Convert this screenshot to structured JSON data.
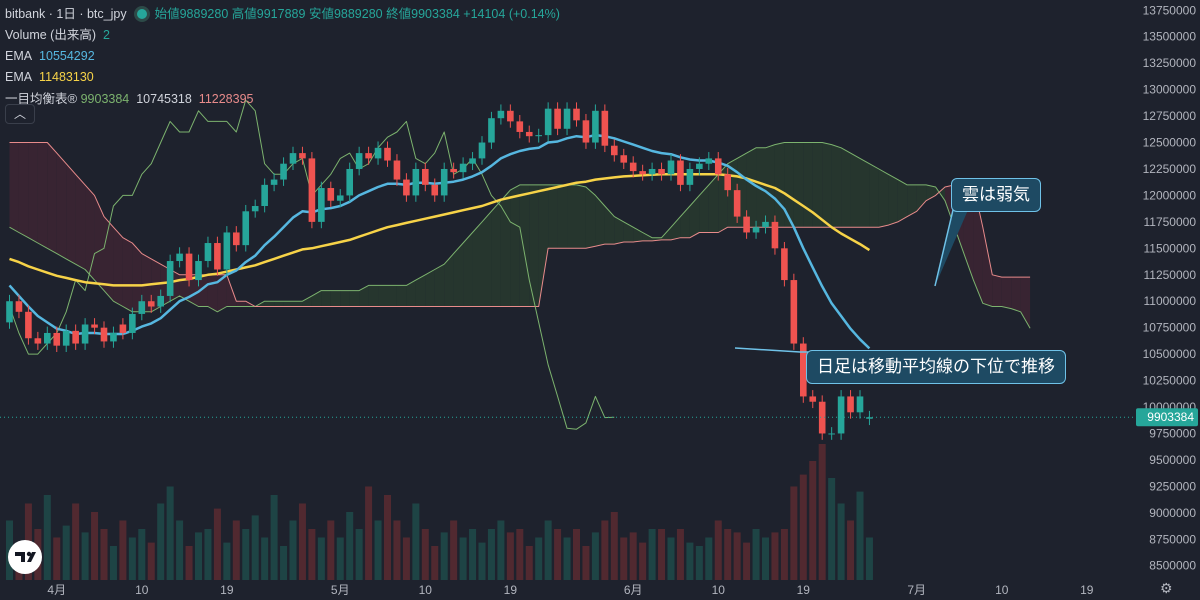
{
  "header": {
    "symbol": "bitbank · 1日 · btc_jpy",
    "open_label": "始値",
    "open": "9889280",
    "high_label": "高値",
    "high": "9917889",
    "low_label": "安値",
    "low": "9889280",
    "close_label": "終値",
    "close": "9903384",
    "change": "+14104 (+0.14%)"
  },
  "indicators": {
    "volume_label": "Volume (出来高)",
    "volume_value": "2",
    "ema1_label": "EMA",
    "ema1_value": "10554292",
    "ema2_label": "EMA",
    "ema2_value": "11483130",
    "ichimoku_label": "一目均衡表",
    "ichimoku_symbol": "®",
    "ichimoku_v1": "9903384",
    "ichimoku_v2": "10745318",
    "ichimoku_v3": "11228395"
  },
  "collapse_icon": "chevron-up-icon",
  "annotations": {
    "cloud": "雲は弱気",
    "ma": "日足は移動平均線の下位で推移"
  },
  "colors": {
    "bull": "#26a69a",
    "bear": "#ef5350",
    "ema_fast": "#56b7e0",
    "ema_slow": "#f7d348",
    "senkou_a": "#7cb36e",
    "senkou_b": "#e88b8b",
    "background": "#1e222d"
  },
  "chart_data": {
    "type": "candlestick",
    "y_ticks": [
      8500000,
      8750000,
      9000000,
      9250000,
      9500000,
      9750000,
      10000000,
      10250000,
      10500000,
      10750000,
      11000000,
      11250000,
      11500000,
      11750000,
      12000000,
      12250000,
      12500000,
      12750000,
      13000000,
      13250000,
      13500000,
      13750000
    ],
    "y_tick_labels": [
      "8500000",
      "8750000",
      "9000000",
      "9250000",
      "9500000",
      "9750000",
      "10000000",
      "10250000",
      "10500000",
      "10750000",
      "11000000",
      "11250000",
      "11500000",
      "11750000",
      "12000000",
      "12250000",
      "12500000",
      "12750000",
      "13000000",
      "13250000",
      "13500000",
      "13750000"
    ],
    "ylim": [
      8450000,
      13800000
    ],
    "last_price": 9903384,
    "last_price_label": "9903384",
    "x_ticks": [
      {
        "label": "4月",
        "day": 0
      },
      {
        "label": "10",
        "day": 9
      },
      {
        "label": "19",
        "day": 18
      },
      {
        "label": "5月",
        "day": 30
      },
      {
        "label": "10",
        "day": 39
      },
      {
        "label": "19",
        "day": 48
      },
      {
        "label": "6月",
        "day": 61
      },
      {
        "label": "10",
        "day": 70
      },
      {
        "label": "19",
        "day": 79
      },
      {
        "label": "7月",
        "day": 91
      },
      {
        "label": "10",
        "day": 100
      },
      {
        "label": "19",
        "day": 109
      }
    ],
    "first_day_offset": -5,
    "close": [
      11000000,
      10900000,
      10650000,
      10600000,
      10700000,
      10580000,
      10720000,
      10600000,
      10780000,
      10750000,
      10620000,
      10700000,
      10700000,
      10880000,
      11000000,
      10950000,
      11050000,
      11380000,
      11450000,
      11200000,
      11380000,
      11550000,
      11300000,
      11650000,
      11530000,
      11850000,
      11900000,
      12100000,
      12150000,
      12300000,
      12400000,
      12350000,
      11750000,
      12070000,
      11950000,
      12000000,
      12250000,
      12400000,
      12350000,
      12450000,
      12330000,
      12150000,
      12000000,
      12250000,
      12100000,
      12000000,
      12250000,
      12220000,
      12300000,
      12350000,
      12500000,
      12730000,
      12800000,
      12700000,
      12600000,
      12560000,
      12570000,
      12820000,
      12630000,
      12820000,
      12710000,
      12500000,
      12800000,
      12470000,
      12380000,
      12310000,
      12230000,
      12200000,
      12250000,
      12200000,
      12330000,
      12100000,
      12250000,
      12300000,
      12350000,
      12200000,
      12050000,
      11800000,
      11650000,
      11700000,
      11750000,
      11500000,
      11200000,
      10600000,
      10100000,
      10050000,
      9750000,
      9750000,
      10100000,
      9950000,
      10100000,
      9903384
    ],
    "candle_open": [
      10800000,
      11000000,
      10900000,
      10650000,
      10600000,
      10700000,
      10580000,
      10720000,
      10600000,
      10780000,
      10750000,
      10620000,
      10780000,
      10700000,
      10880000,
      11000000,
      10950000,
      11050000,
      11380000,
      11450000,
      11200000,
      11380000,
      11550000,
      11300000,
      11650000,
      11530000,
      11850000,
      11900000,
      12100000,
      12150000,
      12300000,
      12400000,
      12350000,
      11750000,
      12070000,
      11950000,
      12000000,
      12250000,
      12400000,
      12350000,
      12450000,
      12330000,
      12150000,
      12000000,
      12250000,
      12100000,
      12000000,
      12250000,
      12220000,
      12300000,
      12350000,
      12500000,
      12730000,
      12800000,
      12700000,
      12600000,
      12560000,
      12570000,
      12820000,
      12630000,
      12820000,
      12710000,
      12500000,
      12800000,
      12470000,
      12380000,
      12310000,
      12230000,
      12200000,
      12250000,
      12200000,
      12330000,
      12100000,
      12250000,
      12300000,
      12350000,
      12200000,
      12050000,
      11800000,
      11650000,
      11700000,
      11750000,
      11500000,
      11200000,
      10600000,
      10100000,
      10050000,
      9750000,
      9750000,
      10100000,
      9950000,
      9889280
    ],
    "ema_fast": [
      11150000,
      11050000,
      10950000,
      10860000,
      10800000,
      10740000,
      10720000,
      10690000,
      10700000,
      10700000,
      10690000,
      10690000,
      10690000,
      10720000,
      10760000,
      10790000,
      10840000,
      10920000,
      11000000,
      11040000,
      11090000,
      11160000,
      11180000,
      11250000,
      11290000,
      11370000,
      11430000,
      11530000,
      11610000,
      11700000,
      11790000,
      11850000,
      11840000,
      11870000,
      11880000,
      11900000,
      11940000,
      12000000,
      12040000,
      12080000,
      12110000,
      12110000,
      12100000,
      12120000,
      12120000,
      12110000,
      12120000,
      12130000,
      12150000,
      12180000,
      12220000,
      12280000,
      12350000,
      12390000,
      12420000,
      12440000,
      12450000,
      12500000,
      12510000,
      12540000,
      12560000,
      12550000,
      12570000,
      12560000,
      12540000,
      12510000,
      12480000,
      12450000,
      12420000,
      12400000,
      12390000,
      12360000,
      12340000,
      12330000,
      12330000,
      12310000,
      12280000,
      12220000,
      12150000,
      12090000,
      12040000,
      11970000,
      11870000,
      11700000,
      11500000,
      11320000,
      11140000,
      10980000,
      10860000,
      10740000,
      10640000,
      10554292
    ],
    "ema_slow": [
      11400000,
      11370000,
      11330000,
      11300000,
      11270000,
      11240000,
      11220000,
      11200000,
      11180000,
      11170000,
      11160000,
      11150000,
      11150000,
      11150000,
      11150000,
      11160000,
      11170000,
      11180000,
      11200000,
      11210000,
      11230000,
      11250000,
      11260000,
      11280000,
      11300000,
      11320000,
      11340000,
      11370000,
      11400000,
      11430000,
      11460000,
      11490000,
      11500000,
      11520000,
      11540000,
      11560000,
      11580000,
      11610000,
      11640000,
      11670000,
      11700000,
      11720000,
      11740000,
      11760000,
      11780000,
      11800000,
      11820000,
      11840000,
      11860000,
      11880000,
      11900000,
      11930000,
      11960000,
      11980000,
      12000000,
      12020000,
      12040000,
      12060000,
      12080000,
      12100000,
      12120000,
      12130000,
      12150000,
      12160000,
      12170000,
      12180000,
      12185000,
      12190000,
      12195000,
      12200000,
      12200000,
      12200000,
      12200000,
      12200000,
      12200000,
      12200000,
      12190000,
      12180000,
      12160000,
      12130000,
      12100000,
      12070000,
      12020000,
      11960000,
      11900000,
      11840000,
      11770000,
      11700000,
      11640000,
      11590000,
      11540000,
      11483130
    ],
    "senkou_a": [
      11700000,
      11650000,
      11600000,
      11550000,
      11500000,
      11450000,
      11400000,
      11350000,
      11300000,
      11200000,
      11100000,
      11000000,
      10950000,
      10900000,
      10900000,
      10900000,
      10950000,
      11000000,
      11050000,
      11000000,
      10950000,
      10950000,
      10900000,
      10950000,
      10950000,
      10950000,
      10950000,
      11000000,
      11000000,
      11000000,
      11000000,
      11000000,
      11050000,
      11100000,
      11100000,
      11100000,
      11100000,
      11100000,
      11150000,
      11150000,
      11150000,
      11150000,
      11150000,
      11200000,
      11250000,
      11300000,
      11350000,
      11450000,
      11550000,
      11650000,
      11750000,
      11850000,
      11950000,
      12050000,
      12100000,
      12100000,
      12100000,
      12100000,
      12100000,
      12100000,
      12100000,
      12080000,
      12000000,
      11900000,
      11800000,
      11750000,
      11700000,
      11650000,
      11600000,
      11600000,
      11700000,
      11800000,
      11900000,
      12000000,
      12100000,
      12200000,
      12300000,
      12350000,
      12400000,
      12450000,
      12450000,
      12480000,
      12500000,
      12500000,
      12500000,
      12500000,
      12500000,
      12480000,
      12450000,
      12400000,
      12350000,
      12300000,
      12250000,
      12200000,
      12150000,
      12100000,
      12100000,
      12100000,
      12080000,
      11950000,
      11700000,
      11450000,
      11200000,
      10980000,
      10950000,
      10950000,
      10930000,
      10900000,
      10745318
    ],
    "senkou_b": [
      12500000,
      12500000,
      12500000,
      12500000,
      12500000,
      12400000,
      12300000,
      12200000,
      12100000,
      12000000,
      11800000,
      11700000,
      11600000,
      11550000,
      11450000,
      11400000,
      11350000,
      11300000,
      11250000,
      11250000,
      11250000,
      11250000,
      11250000,
      11250000,
      11000000,
      11000000,
      10950000,
      10950000,
      10950000,
      10950000,
      10950000,
      10950000,
      10950000,
      10950000,
      10950000,
      10950000,
      10950000,
      10950000,
      10950000,
      10950000,
      10950000,
      10950000,
      10950000,
      10950000,
      10950000,
      10950000,
      10950000,
      10950000,
      10950000,
      10950000,
      10950000,
      10950000,
      10950000,
      10950000,
      10950000,
      10950000,
      10950000,
      11500000,
      11500000,
      11500000,
      11500000,
      11500000,
      11520000,
      11540000,
      11540000,
      11560000,
      11560000,
      11570000,
      11570000,
      11580000,
      11580000,
      11600000,
      11600000,
      11650000,
      11650000,
      11650000,
      11700000,
      11700000,
      11700000,
      11700000,
      11700000,
      11700000,
      11700000,
      11700000,
      11700000,
      11700000,
      11700000,
      11700000,
      11700000,
      11700000,
      11700000,
      11700000,
      11700000,
      11720000,
      11750000,
      11800000,
      11850000,
      11950000,
      12000000,
      12080000,
      12100000,
      12100000,
      12100000,
      11700000,
      11250000,
      11228395,
      11228395,
      11228395,
      11228395
    ],
    "chikou": [
      10950000,
      10700000,
      10500000,
      10500000,
      10600000,
      10700000,
      10900000,
      11200000,
      11100000,
      11450000,
      11500000,
      11900000,
      12000000,
      12000000,
      12200000,
      12300000,
      12500000,
      12700000,
      12600000,
      12600000,
      12800000,
      12700000,
      12700000,
      12700000,
      12600000,
      12900000,
      12800000,
      12300000,
      12200000,
      12200000,
      12300000,
      12350000,
      12000000,
      12100000,
      12200000,
      12350000,
      12400000,
      12250000,
      12300000,
      12450000,
      12550000,
      12600000,
      12700000,
      12350000,
      12300000,
      12400000,
      12600000,
      12200000,
      12250000,
      12350000,
      12200000,
      12000000,
      11900000,
      11750000,
      11700000,
      11200000,
      10800000,
      10400000,
      10100000,
      9800000,
      9790000,
      9850000,
      10100000,
      9900000,
      9903384
    ],
    "volume_rel": [
      0.35,
      0.2,
      0.45,
      0.3,
      0.5,
      0.25,
      0.32,
      0.45,
      0.28,
      0.4,
      0.3,
      0.2,
      0.35,
      0.25,
      0.3,
      0.22,
      0.45,
      0.55,
      0.35,
      0.2,
      0.28,
      0.3,
      0.42,
      0.22,
      0.35,
      0.3,
      0.38,
      0.25,
      0.5,
      0.2,
      0.35,
      0.45,
      0.3,
      0.25,
      0.35,
      0.25,
      0.4,
      0.3,
      0.55,
      0.35,
      0.5,
      0.35,
      0.25,
      0.45,
      0.3,
      0.2,
      0.28,
      0.35,
      0.25,
      0.3,
      0.22,
      0.3,
      0.35,
      0.28,
      0.3,
      0.2,
      0.25,
      0.35,
      0.3,
      0.25,
      0.3,
      0.2,
      0.28,
      0.35,
      0.4,
      0.25,
      0.28,
      0.22,
      0.3,
      0.3,
      0.25,
      0.3,
      0.22,
      0.2,
      0.25,
      0.35,
      0.3,
      0.28,
      0.22,
      0.3,
      0.25,
      0.28,
      0.3,
      0.55,
      0.62,
      0.7,
      0.8,
      0.6,
      0.45,
      0.35,
      0.52,
      0.25
    ]
  }
}
